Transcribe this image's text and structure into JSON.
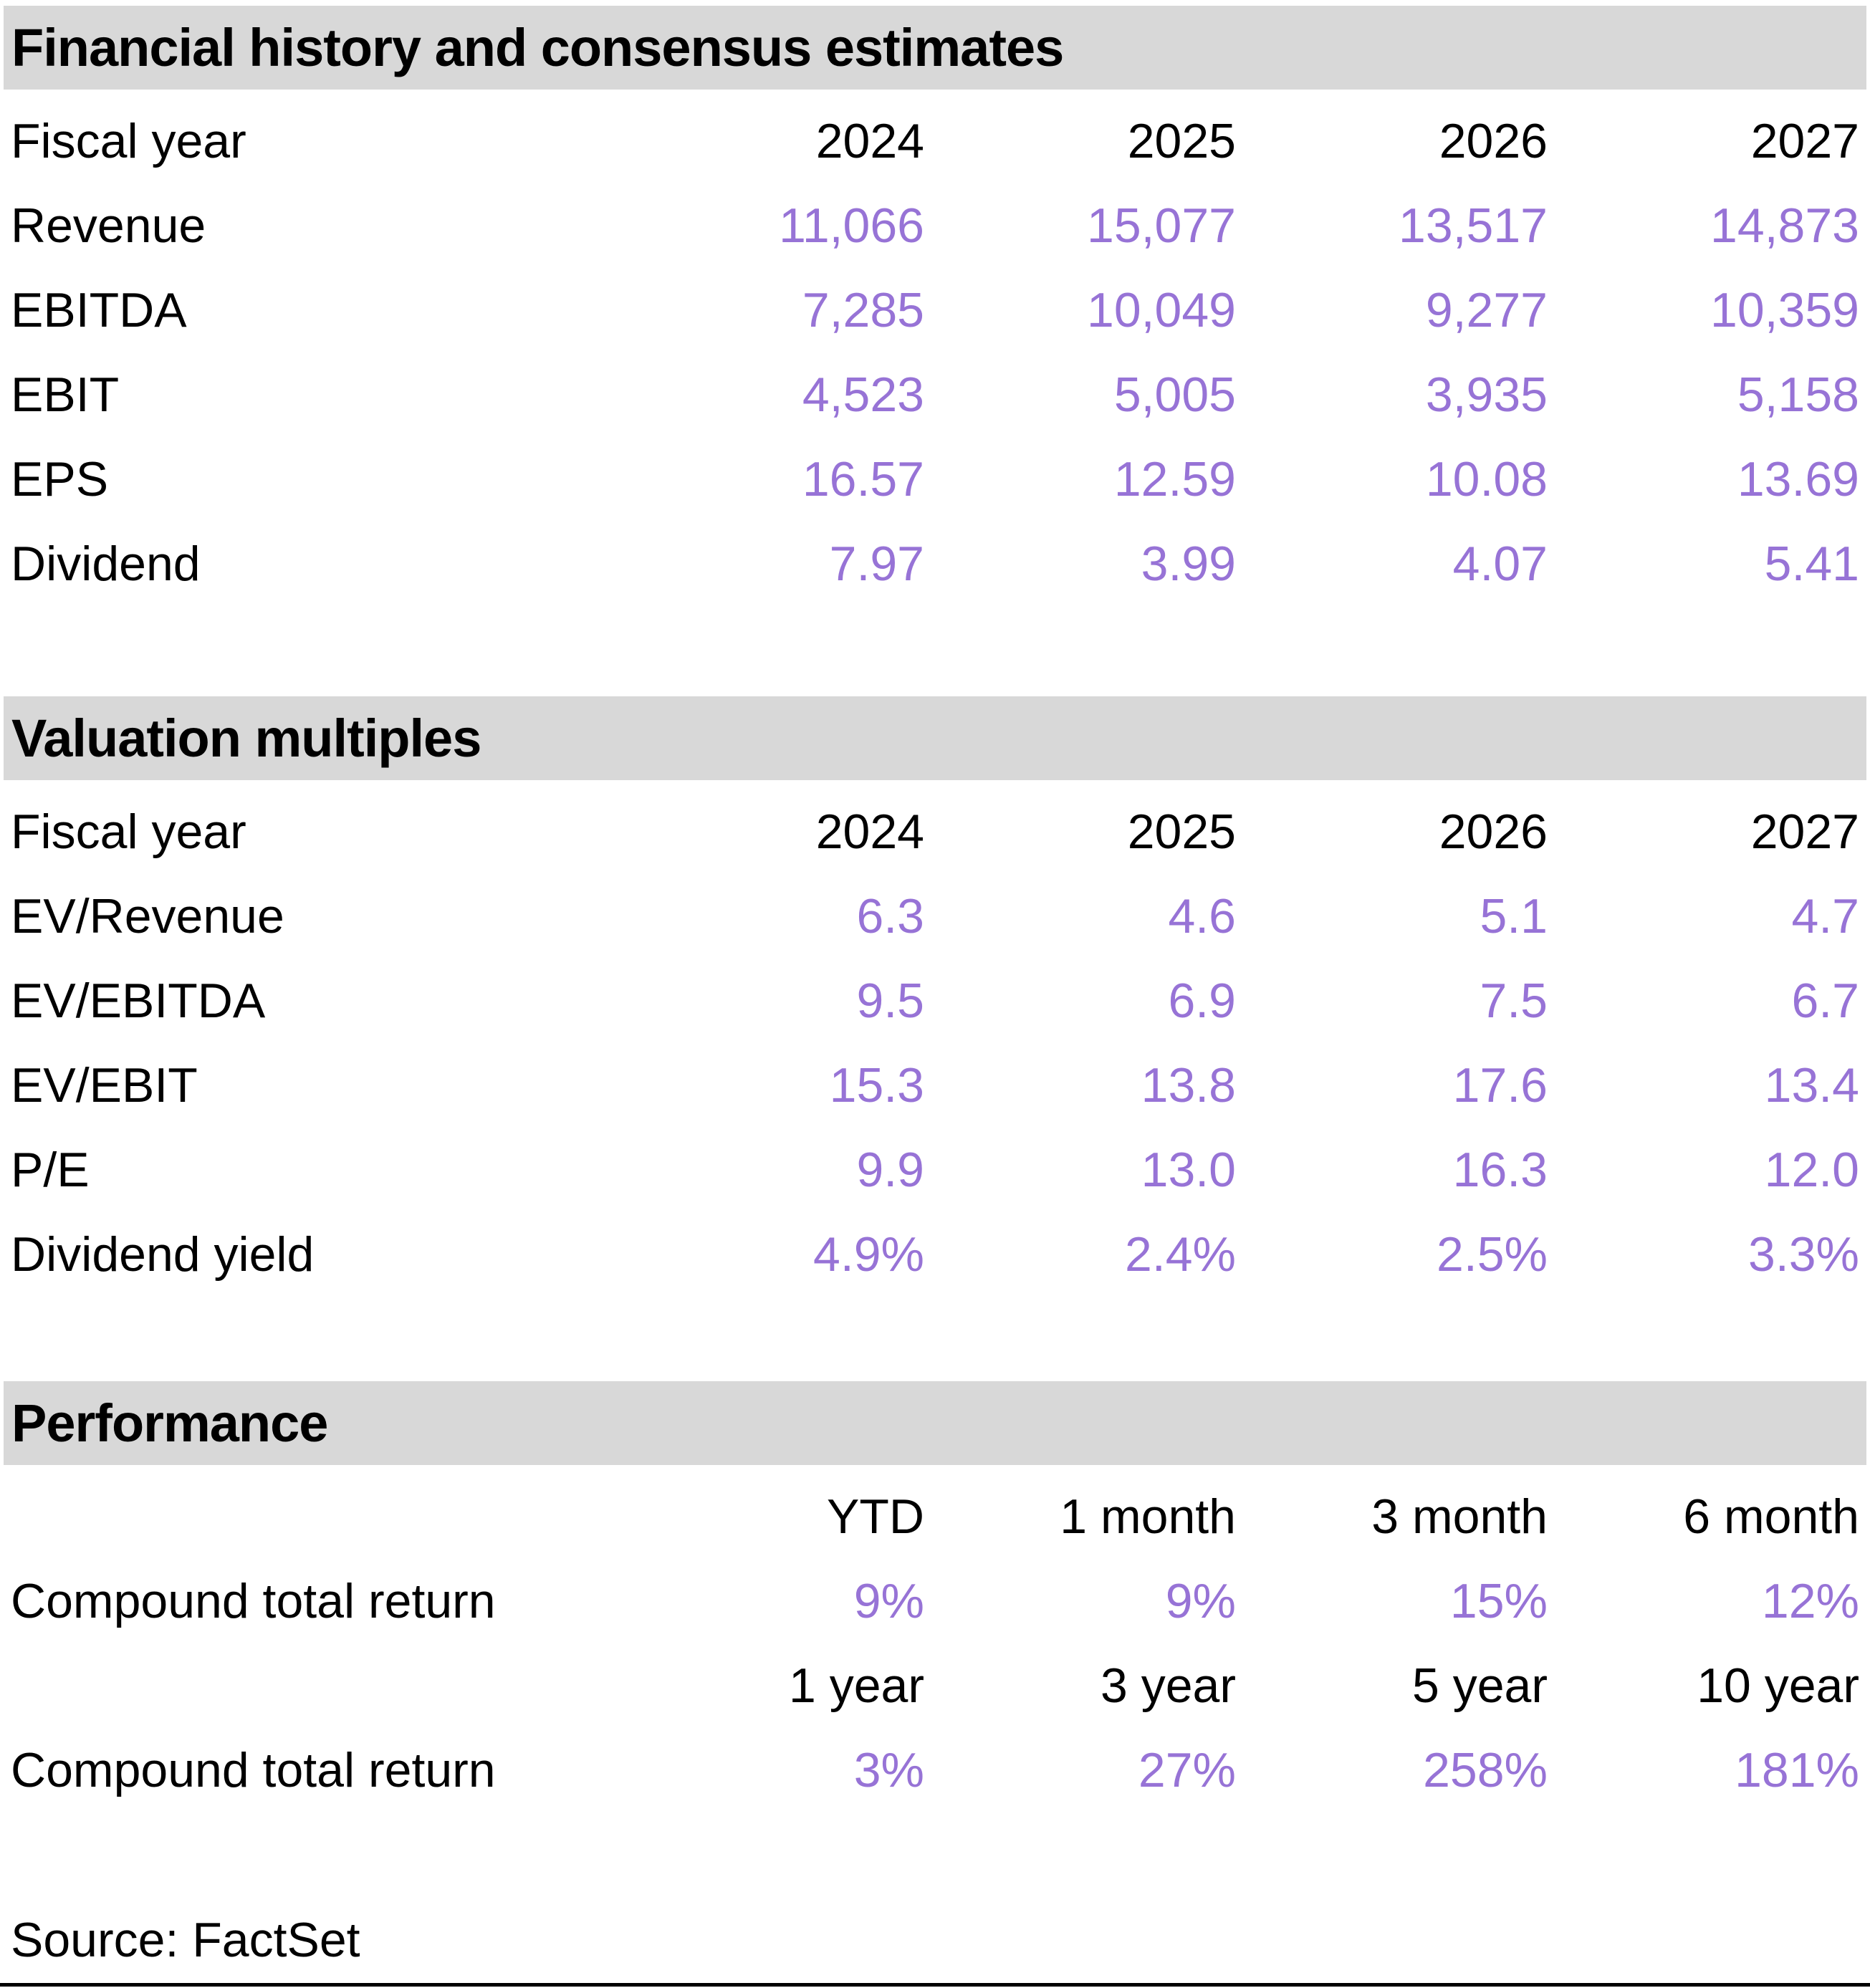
{
  "colors": {
    "accent_value_text": "#9773D6",
    "section_header_bg": "#D8D8D8",
    "body_text": "#000000"
  },
  "sections": [
    {
      "title": "Financial history and consensus estimates",
      "col_header_label": "Fiscal year",
      "columns": [
        "2024",
        "2025",
        "2026",
        "2027"
      ],
      "rows": [
        {
          "label": "Revenue",
          "values": [
            "11,066",
            "15,077",
            "13,517",
            "14,873"
          ]
        },
        {
          "label": "EBITDA",
          "values": [
            "7,285",
            "10,049",
            "9,277",
            "10,359"
          ]
        },
        {
          "label": "EBIT",
          "values": [
            "4,523",
            "5,005",
            "3,935",
            "5,158"
          ]
        },
        {
          "label": "EPS",
          "values": [
            "16.57",
            "12.59",
            "10.08",
            "13.69"
          ]
        },
        {
          "label": "Dividend",
          "values": [
            "7.97",
            "3.99",
            "4.07",
            "5.41"
          ]
        }
      ]
    },
    {
      "title": "Valuation multiples",
      "col_header_label": "Fiscal year",
      "columns": [
        "2024",
        "2025",
        "2026",
        "2027"
      ],
      "rows": [
        {
          "label": "EV/Revenue",
          "values": [
            "6.3",
            "4.6",
            "5.1",
            "4.7"
          ]
        },
        {
          "label": "EV/EBITDA",
          "values": [
            "9.5",
            "6.9",
            "7.5",
            "6.7"
          ]
        },
        {
          "label": "EV/EBIT",
          "values": [
            "15.3",
            "13.8",
            "17.6",
            "13.4"
          ]
        },
        {
          "label": "P/E",
          "values": [
            "9.9",
            "13.0",
            "16.3",
            "12.0"
          ]
        },
        {
          "label": "Dividend yield",
          "values": [
            "4.9%",
            "2.4%",
            "2.5%",
            "3.3%"
          ]
        }
      ]
    },
    {
      "title": "Performance",
      "groups": [
        {
          "columns": [
            "YTD",
            "1 month",
            "3 month",
            "6 month"
          ],
          "row": {
            "label": "Compound total return",
            "values": [
              "9%",
              "9%",
              "15%",
              "12%"
            ]
          }
        },
        {
          "columns": [
            "1 year",
            "3 year",
            "5 year",
            "10 year"
          ],
          "row": {
            "label": "Compound total return",
            "values": [
              "3%",
              "27%",
              "258%",
              "181%"
            ]
          }
        }
      ]
    }
  ],
  "footer": {
    "source": "Source: FactSet"
  }
}
